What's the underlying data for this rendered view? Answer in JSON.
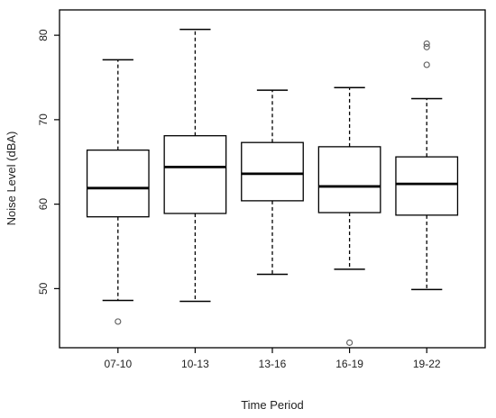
{
  "chart_data": {
    "type": "boxplot",
    "title": "",
    "xlabel": "Time Period",
    "ylabel": "Noise Level (dBA)",
    "ylim": [
      43,
      83
    ],
    "yticks": [
      50,
      60,
      70,
      80
    ],
    "grid": false,
    "legend": "none",
    "colors": {
      "box_fill": "#ffffff",
      "line": "#000000",
      "outlier": "#666666"
    },
    "categories": [
      "07-10",
      "10-13",
      "13-16",
      "16-19",
      "19-22"
    ],
    "boxes": [
      {
        "category": "07-10",
        "whisker_low": 48.6,
        "q1": 58.5,
        "median": 61.9,
        "q3": 66.4,
        "whisker_high": 77.1,
        "outliers": [
          46.1
        ]
      },
      {
        "category": "10-13",
        "whisker_low": 48.5,
        "q1": 58.9,
        "median": 64.4,
        "q3": 68.1,
        "whisker_high": 80.7,
        "outliers": []
      },
      {
        "category": "13-16",
        "whisker_low": 51.7,
        "q1": 60.4,
        "median": 63.6,
        "q3": 67.3,
        "whisker_high": 73.5,
        "outliers": []
      },
      {
        "category": "16-19",
        "whisker_low": 52.3,
        "q1": 59.0,
        "median": 62.1,
        "q3": 66.8,
        "whisker_high": 73.8,
        "outliers": [
          43.6
        ]
      },
      {
        "category": "19-22",
        "whisker_low": 49.9,
        "q1": 58.7,
        "median": 62.4,
        "q3": 65.6,
        "whisker_high": 72.5,
        "outliers": [
          76.5,
          78.6,
          79.0
        ]
      }
    ]
  }
}
